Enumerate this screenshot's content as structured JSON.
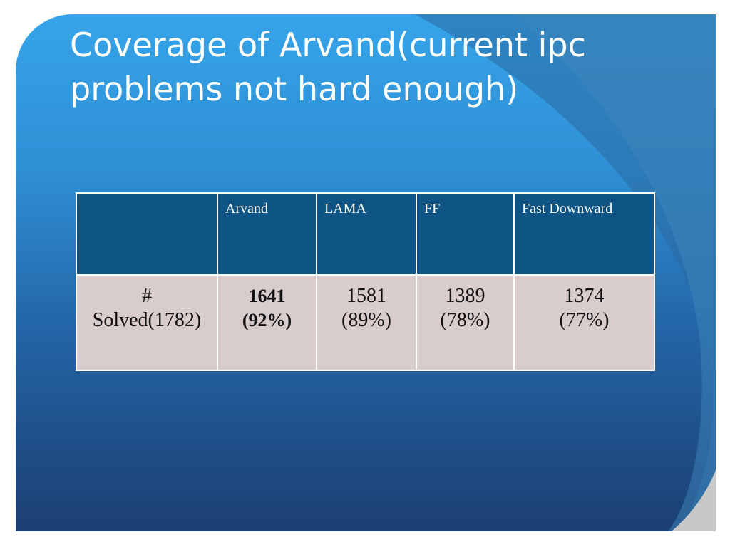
{
  "header": {
    "title_lines": [
      "Coverage of Arvand(current ipc",
      "problems not hard enough)"
    ]
  },
  "table": {
    "columns": [
      "Arvand",
      "LAMA",
      "FF",
      "Fast Downward"
    ],
    "rows": [
      {
        "label": [
          "#",
          "Solved(1782)"
        ],
        "cells": [
          [
            "1641",
            "(92%)"
          ],
          [
            "1581",
            "(89%)"
          ],
          [
            "1389",
            "(78%)"
          ],
          [
            "1374",
            "(77%)"
          ]
        ]
      }
    ]
  }
}
